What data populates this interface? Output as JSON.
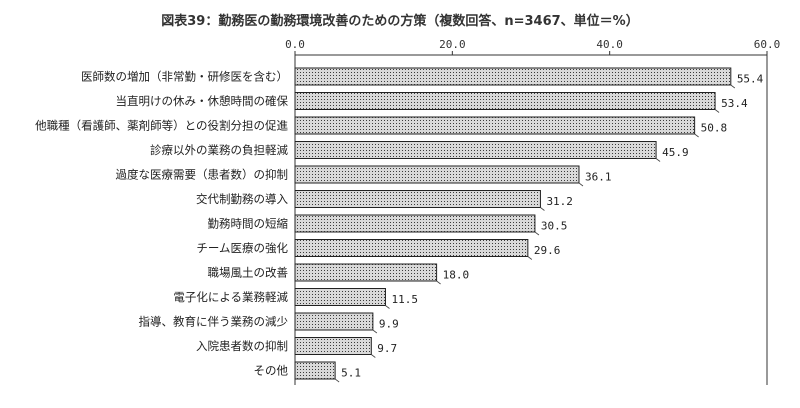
{
  "chart_data": {
    "type": "bar",
    "orientation": "horizontal",
    "title": "図表39：勤務医の勤務環境改善のための方策（複数回答、n=3467、単位＝%）",
    "categories": [
      "医師数の増加（非常勤・研修医を含む）",
      "当直明けの休み・休憩時間の確保",
      "他職種（看護師、薬剤師等）との役割分担の促進",
      "診療以外の業務の負担軽減",
      "過度な医療需要（患者数）の抑制",
      "交代制勤務の導入",
      "勤務時間の短縮",
      "チーム医療の強化",
      "職場風土の改善",
      "電子化による業務軽減",
      "指導、教育に伴う業務の減少",
      "入院患者数の抑制",
      "その他"
    ],
    "values": [
      55.4,
      53.4,
      50.8,
      45.9,
      36.1,
      31.2,
      30.5,
      29.6,
      18.0,
      11.5,
      9.9,
      9.7,
      5.1
    ],
    "value_labels": [
      "55.4",
      "53.4",
      "50.8",
      "45.9",
      "36.1",
      "31.2",
      "30.5",
      "29.6",
      "18.0",
      "11.5",
      "9.9",
      "9.7",
      "5.1"
    ],
    "xlim": [
      0,
      60
    ],
    "xticks": [
      0,
      20,
      40,
      60
    ],
    "xtick_labels": [
      "0.0",
      "20.0",
      "40.0",
      "60.0"
    ],
    "axis_position": "top",
    "grid": false,
    "bar_pattern": "dotted",
    "colors": {
      "bar_fill": "#d9d9d9",
      "bar_dots": "#3a3a3a",
      "bar_stroke": "#222222",
      "axis": "#333333"
    }
  }
}
